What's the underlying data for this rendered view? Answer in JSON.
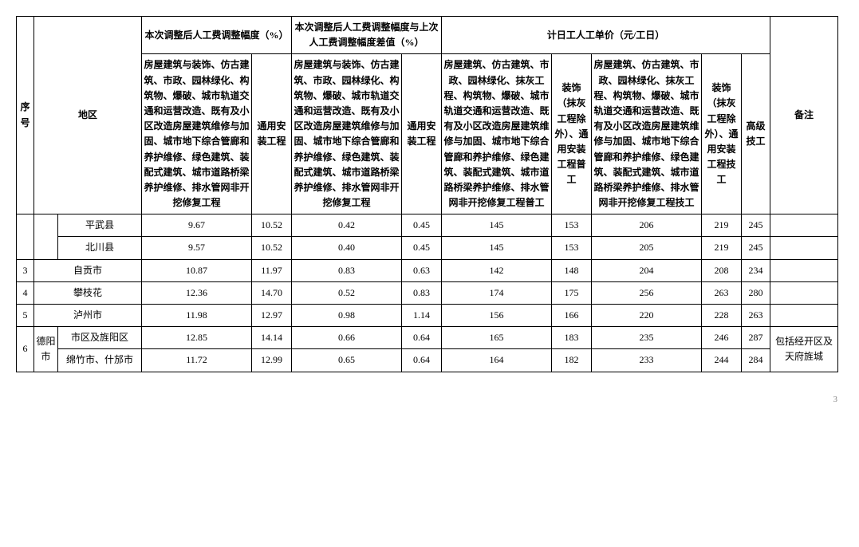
{
  "headers": {
    "seq": "序号",
    "region": "地区",
    "group1": "本次调整后人工费调整幅度（%）",
    "group2": "本次调整后人工费调整幅度与上次人工费调整幅度差值（%）",
    "group3": "计日工人工单价（元/工日）",
    "note": "备注",
    "long1": "房屋建筑与装饰、仿古建筑、市政、园林绿化、构筑物、爆破、城市轨道交通和运营改造、既有及小区改造房屋建筑维修与加固、城市地下综合管廊和养护维修、绿色建筑、装配式建筑、城市道路桥梁养护维修、排水管网非开挖修复工程",
    "short1": "通用安装工程",
    "long2": "房屋建筑与装饰、仿古建筑、市政、园林绿化、构筑物、爆破、城市轨道交通和运营改造、既有及小区改造房屋建筑维修与加固、城市地下综合管廊和养护维修、绿色建筑、装配式建筑、城市道路桥梁养护维修、排水管网非开挖修复工程",
    "short2": "通用安装工程",
    "long3": "房屋建筑、仿古建筑、市政、园林绿化、抹灰工程、构筑物、爆破、城市轨道交通和运营改造、既有及小区改造房屋建筑维修与加固、城市地下综合管廊和养护维修、绿色建筑、装配式建筑、城市道路桥梁养护维修、排水管网非开挖修复工程普工",
    "short3": "装饰（抹灰工程除外）、通用安装工程普工",
    "long4": "房屋建筑、仿古建筑、市政、园林绿化、抹灰工程、构筑物、爆破、城市轨道交通和运营改造、既有及小区改造房屋建筑维修与加固、城市地下综合管廊和养护维修、绿色建筑、装配式建筑、城市道路桥梁养护维修、排水管网非开挖修复工程技工",
    "short4": "装饰（抹灰工程除外）、通用安装工程技工",
    "senior": "高级技工"
  },
  "rows": {
    "r0": {
      "seq": "",
      "region1": "",
      "region2": "平武县",
      "c1": "9.67",
      "c2": "10.52",
      "c3": "0.42",
      "c4": "0.45",
      "c5": "145",
      "c6": "153",
      "c7": "206",
      "c8": "219",
      "c9": "245",
      "note": ""
    },
    "r1": {
      "seq": "",
      "region1": "",
      "region2": "北川县",
      "c1": "9.57",
      "c2": "10.52",
      "c3": "0.40",
      "c4": "0.45",
      "c5": "145",
      "c6": "153",
      "c7": "205",
      "c8": "219",
      "c9": "245",
      "note": ""
    },
    "r2": {
      "seq": "3",
      "region": "自贡市",
      "c1": "10.87",
      "c2": "11.97",
      "c3": "0.83",
      "c4": "0.63",
      "c5": "142",
      "c6": "148",
      "c7": "204",
      "c8": "208",
      "c9": "234",
      "note": ""
    },
    "r3": {
      "seq": "4",
      "region": "攀枝花",
      "c1": "12.36",
      "c2": "14.70",
      "c3": "0.52",
      "c4": "0.83",
      "c5": "174",
      "c6": "175",
      "c7": "256",
      "c8": "263",
      "c9": "280",
      "note": ""
    },
    "r4": {
      "seq": "5",
      "region": "泸州市",
      "c1": "11.98",
      "c2": "12.97",
      "c3": "0.98",
      "c4": "1.14",
      "c5": "156",
      "c6": "166",
      "c7": "220",
      "c8": "228",
      "c9": "263",
      "note": ""
    },
    "r5": {
      "seq": "6",
      "region1": "德阳市",
      "region2": "市区及旌阳区",
      "c1": "12.85",
      "c2": "14.14",
      "c3": "0.66",
      "c4": "0.64",
      "c5": "165",
      "c6": "183",
      "c7": "235",
      "c8": "246",
      "c9": "287",
      "note": "包括经开区及天府旌城"
    },
    "r6": {
      "region2": "绵竹市、什邡市",
      "c1": "11.72",
      "c2": "12.99",
      "c3": "0.65",
      "c4": "0.64",
      "c5": "164",
      "c6": "182",
      "c7": "233",
      "c8": "244",
      "c9": "284"
    }
  },
  "pagenum": "3"
}
